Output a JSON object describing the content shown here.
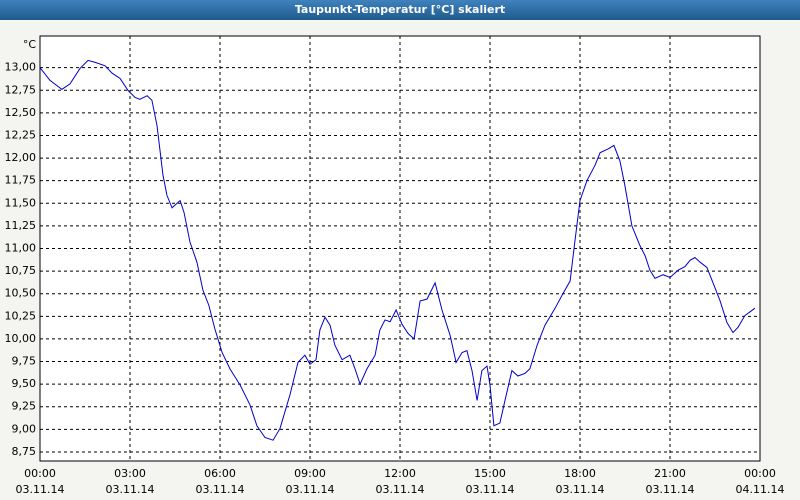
{
  "chart_data": {
    "type": "line",
    "title": "Taupunkt-Temperatur [°C] skaliert",
    "y_unit": "°C",
    "grid": true,
    "xlim": [
      0,
      24
    ],
    "xticks": [
      {
        "value": 0,
        "label": "00:00",
        "date": "03.11.14"
      },
      {
        "value": 3,
        "label": "03:00",
        "date": "03.11.14"
      },
      {
        "value": 6,
        "label": "06:00",
        "date": "03.11.14"
      },
      {
        "value": 9,
        "label": "09:00",
        "date": "03.11.14"
      },
      {
        "value": 12,
        "label": "12:00",
        "date": "03.11.14"
      },
      {
        "value": 15,
        "label": "15:00",
        "date": "03.11.14"
      },
      {
        "value": 18,
        "label": "18:00",
        "date": "03.11.14"
      },
      {
        "value": 21,
        "label": "21:00",
        "date": "03.11.14"
      },
      {
        "value": 24,
        "label": "00:00",
        "date": "04.11.14"
      }
    ],
    "ylim": [
      8.65,
      13.35
    ],
    "yticks": [
      {
        "value": 8.75,
        "label": "8,75"
      },
      {
        "value": 9,
        "label": "9,00"
      },
      {
        "value": 9.25,
        "label": "9,25"
      },
      {
        "value": 9.5,
        "label": "9,50"
      },
      {
        "value": 9.75,
        "label": "9,75"
      },
      {
        "value": 10,
        "label": "10,00"
      },
      {
        "value": 10.25,
        "label": "10,25"
      },
      {
        "value": 10.5,
        "label": "10,50"
      },
      {
        "value": 10.75,
        "label": "10,75"
      },
      {
        "value": 11,
        "label": "11,00"
      },
      {
        "value": 11.25,
        "label": "11,25"
      },
      {
        "value": 11.5,
        "label": "11,50"
      },
      {
        "value": 11.75,
        "label": "11,75"
      },
      {
        "value": 12,
        "label": "12,00"
      },
      {
        "value": 12.25,
        "label": "12,25"
      },
      {
        "value": 12.5,
        "label": "12,50"
      },
      {
        "value": 12.75,
        "label": "12,75"
      },
      {
        "value": 13,
        "label": "13,00"
      }
    ],
    "x": [
      0,
      0.33,
      0.73,
      1.0,
      1.33,
      1.6,
      1.83,
      2.17,
      2.4,
      2.67,
      2.93,
      3.17,
      3.33,
      3.57,
      3.73,
      3.9,
      4.1,
      4.23,
      4.4,
      4.67,
      4.8,
      5.0,
      5.23,
      5.43,
      5.63,
      5.83,
      6.07,
      6.33,
      6.67,
      7.0,
      7.23,
      7.5,
      7.77,
      8.0,
      8.33,
      8.6,
      8.83,
      9.0,
      9.2,
      9.33,
      9.5,
      9.67,
      9.83,
      10.07,
      10.33,
      10.5,
      10.67,
      10.9,
      11.17,
      11.33,
      11.5,
      11.67,
      11.87,
      12.07,
      12.27,
      12.47,
      12.67,
      12.9,
      13.17,
      13.4,
      13.67,
      13.87,
      14.07,
      14.23,
      14.4,
      14.57,
      14.73,
      14.9,
      15.0,
      15.13,
      15.33,
      15.5,
      15.73,
      15.93,
      16.17,
      16.33,
      16.57,
      16.83,
      17.17,
      17.43,
      17.67,
      17.83,
      18.0,
      18.23,
      18.5,
      18.67,
      18.93,
      19.13,
      19.33,
      19.5,
      19.73,
      20.0,
      20.17,
      20.33,
      20.5,
      20.77,
      21.0,
      21.27,
      21.5,
      21.67,
      21.83,
      22.0,
      22.23,
      22.47,
      22.67,
      22.9,
      23.1,
      23.27,
      23.5,
      23.67,
      23.83
    ],
    "series": [
      {
        "name": "Taupunkt-Temperatur",
        "color": "#0000cc",
        "values": [
          13.0,
          12.86,
          12.76,
          12.82,
          12.99,
          13.08,
          13.06,
          13.02,
          12.94,
          12.88,
          12.75,
          12.67,
          12.65,
          12.69,
          12.64,
          12.36,
          11.81,
          11.59,
          11.45,
          11.53,
          11.4,
          11.07,
          10.85,
          10.54,
          10.37,
          10.11,
          9.85,
          9.67,
          9.49,
          9.27,
          9.04,
          8.91,
          8.88,
          9.01,
          9.38,
          9.74,
          9.82,
          9.72,
          9.77,
          10.1,
          10.24,
          10.15,
          9.93,
          9.77,
          9.82,
          9.67,
          9.5,
          9.67,
          9.82,
          10.1,
          10.21,
          10.19,
          10.32,
          10.16,
          10.06,
          10.0,
          10.42,
          10.44,
          10.62,
          10.32,
          10.04,
          9.74,
          9.85,
          9.87,
          9.65,
          9.32,
          9.65,
          9.7,
          9.49,
          9.04,
          9.07,
          9.32,
          9.65,
          9.59,
          9.62,
          9.67,
          9.93,
          10.15,
          10.34,
          10.5,
          10.64,
          11.08,
          11.53,
          11.75,
          11.92,
          12.06,
          12.1,
          12.14,
          11.97,
          11.69,
          11.25,
          11.03,
          10.92,
          10.76,
          10.67,
          10.71,
          10.68,
          10.76,
          10.8,
          10.87,
          10.9,
          10.85,
          10.79,
          10.59,
          10.42,
          10.18,
          10.07,
          10.13,
          10.26,
          10.3,
          10.34
        ]
      }
    ]
  }
}
